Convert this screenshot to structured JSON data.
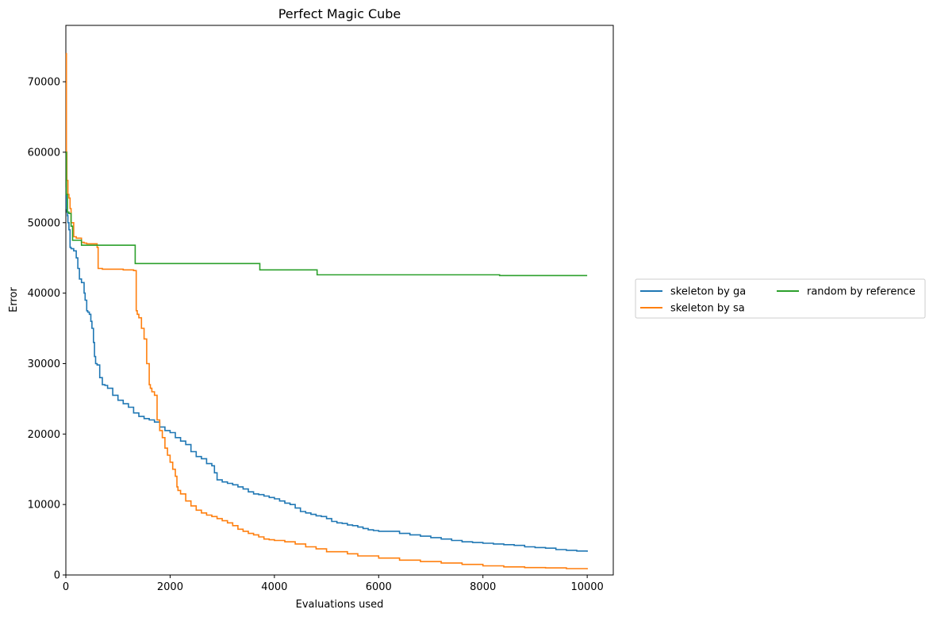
{
  "colors": {
    "background": "#ffffff",
    "axes": "#000000",
    "legend_border": "#cccccc"
  },
  "chart_data": {
    "type": "line",
    "title": "Perfect Magic Cube",
    "xlabel": "Evaluations used",
    "ylabel": "Error",
    "xlim": [
      0,
      10500
    ],
    "ylim": [
      0,
      78000
    ],
    "xticks": [
      0,
      2000,
      4000,
      6000,
      8000,
      10000
    ],
    "yticks": [
      0,
      10000,
      20000,
      30000,
      40000,
      50000,
      60000,
      70000
    ],
    "grid": false,
    "step": true,
    "legend": {
      "placement": "outside-right",
      "columns": 2
    },
    "series": [
      {
        "name": "skeleton by ga",
        "color": "#1f77b4",
        "x": [
          0,
          10,
          20,
          30,
          40,
          60,
          80,
          100,
          150,
          200,
          230,
          260,
          300,
          350,
          370,
          400,
          420,
          450,
          480,
          500,
          530,
          550,
          570,
          600,
          650,
          700,
          750,
          800,
          900,
          1000,
          1100,
          1200,
          1300,
          1400,
          1500,
          1600,
          1700,
          1800,
          1900,
          2000,
          2100,
          2200,
          2300,
          2400,
          2500,
          2600,
          2700,
          2800,
          2850,
          2900,
          3000,
          3100,
          3200,
          3300,
          3400,
          3500,
          3600,
          3700,
          3800,
          3900,
          4000,
          4100,
          4200,
          4300,
          4400,
          4500,
          4600,
          4700,
          4800,
          4900,
          5000,
          5100,
          5200,
          5300,
          5400,
          5500,
          5600,
          5700,
          5800,
          5900,
          6000,
          6200,
          6400,
          6600,
          6800,
          7000,
          7200,
          7400,
          7600,
          7800,
          8000,
          8200,
          8400,
          8600,
          8800,
          9000,
          9200,
          9400,
          9600,
          9800,
          10000
        ],
        "y": [
          55000,
          52000,
          51500,
          51000,
          50000,
          49000,
          46500,
          46300,
          46000,
          45000,
          43500,
          42000,
          41500,
          40000,
          39000,
          37500,
          37300,
          37000,
          36000,
          35000,
          33000,
          31000,
          30000,
          29800,
          28000,
          27000,
          26900,
          26500,
          25500,
          24800,
          24300,
          23800,
          23000,
          22500,
          22200,
          22000,
          21700,
          21000,
          20500,
          20200,
          19500,
          19000,
          18500,
          17500,
          16800,
          16500,
          15800,
          15500,
          14500,
          13500,
          13200,
          13000,
          12800,
          12500,
          12200,
          11800,
          11500,
          11400,
          11200,
          11000,
          10800,
          10500,
          10200,
          10000,
          9500,
          9000,
          8800,
          8600,
          8400,
          8300,
          8000,
          7600,
          7400,
          7300,
          7100,
          7000,
          6800,
          6600,
          6400,
          6300,
          6200,
          6200,
          5900,
          5700,
          5500,
          5300,
          5100,
          4900,
          4700,
          4600,
          4500,
          4400,
          4300,
          4200,
          4000,
          3900,
          3800,
          3600,
          3500,
          3400,
          3300
        ]
      },
      {
        "name": "skeleton by sa",
        "color": "#ff7f0e",
        "x": [
          0,
          10,
          20,
          40,
          60,
          80,
          100,
          150,
          200,
          300,
          350,
          400,
          500,
          600,
          620,
          700,
          1000,
          1100,
          1300,
          1350,
          1370,
          1400,
          1450,
          1500,
          1550,
          1600,
          1620,
          1650,
          1700,
          1750,
          1800,
          1850,
          1900,
          1950,
          2000,
          2050,
          2100,
          2130,
          2150,
          2200,
          2300,
          2400,
          2500,
          2600,
          2700,
          2800,
          2900,
          3000,
          3100,
          3200,
          3300,
          3400,
          3500,
          3600,
          3700,
          3800,
          3900,
          4000,
          4200,
          4400,
          4600,
          4800,
          5000,
          5400,
          5600,
          6000,
          6400,
          6800,
          7200,
          7600,
          8000,
          8400,
          8800,
          9200,
          9600,
          10000
        ],
        "y": [
          74000,
          60000,
          56000,
          54000,
          53500,
          52000,
          50000,
          48000,
          47800,
          47200,
          47100,
          47000,
          47000,
          46500,
          43500,
          43400,
          43400,
          43300,
          43200,
          37500,
          37000,
          36500,
          35000,
          33500,
          30000,
          27000,
          26500,
          26000,
          25500,
          22000,
          20500,
          19500,
          18000,
          17000,
          16000,
          15000,
          14000,
          12500,
          12000,
          11500,
          10500,
          9800,
          9200,
          8800,
          8500,
          8300,
          8000,
          7700,
          7400,
          7000,
          6500,
          6200,
          5900,
          5700,
          5400,
          5100,
          5000,
          4900,
          4700,
          4400,
          4000,
          3700,
          3300,
          3000,
          2700,
          2400,
          2100,
          1900,
          1700,
          1500,
          1300,
          1150,
          1050,
          1000,
          900,
          800
        ]
      },
      {
        "name": "random by reference",
        "color": "#2ca02c",
        "x": [
          0,
          10,
          30,
          60,
          100,
          130,
          300,
          620,
          1300,
          1330,
          3700,
          3720,
          4800,
          4820,
          8300,
          8320,
          10000
        ],
        "y": [
          60000,
          54000,
          51500,
          51300,
          49500,
          47500,
          46800,
          46800,
          46800,
          44200,
          44200,
          43300,
          43300,
          42600,
          42600,
          42500,
          42500
        ]
      }
    ]
  }
}
